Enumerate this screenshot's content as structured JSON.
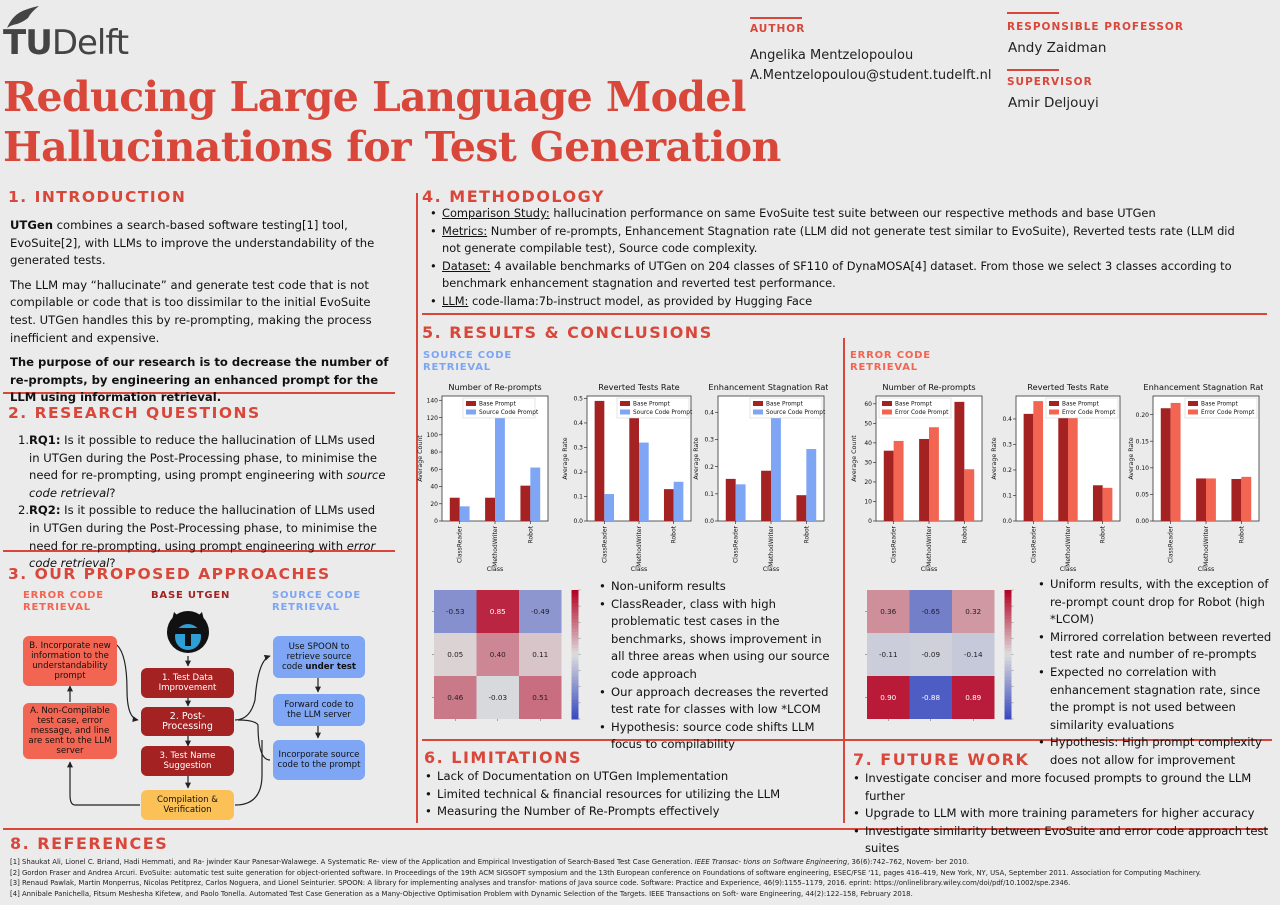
{
  "logo": {
    "text_tu": "TU",
    "text_delft": "Delft"
  },
  "title": [
    "Reducing Large Language Model",
    "Hallucinations for Test Generation"
  ],
  "author": {
    "label": "AUTHOR",
    "name": "Angelika Mentzelopoulou",
    "email": "A.Mentzelopoulou@student.tudelft.nl"
  },
  "professor": {
    "label": "RESPONSIBLE PROFESSOR",
    "name": "Andy Zaidman"
  },
  "supervisor": {
    "label": "SUPERVISOR",
    "name": "Amir Deljouyi"
  },
  "intro": {
    "heading": "1. INTRODUCTION",
    "p1_bold": "UTGen",
    "p1_rest": " combines a search-based software testing[1] tool, EvoSuite[2], with LLMs to improve the understandability of the generated tests.",
    "p2": "The LLM may “hallucinate” and generate test code that is not compilable or code that is too dissimilar to the initial EvoSuite test. UTGen handles this by re-prompting, making the process inefficient and expensive.",
    "p3": "The purpose of our research is to decrease the number of re-prompts, by engineering an enhanced prompt for the LLM using information retrieval."
  },
  "rq": {
    "heading": "2. RESEARCH QUESTIONS",
    "items": [
      {
        "num": "1.",
        "label": "RQ1:",
        "text": " Is it possible to reduce the hallucination of LLMs used in UTGen during the Post-Processing phase, to minimise the need for re-prompting, using prompt engineering with ",
        "em": "source code retrieval",
        "end": "?"
      },
      {
        "num": "2.",
        "label": "RQ2:",
        "text": " Is it possible to reduce the hallucination of LLMs used in UTGen during the Post-Processing phase, to minimise the need for re-prompting, using prompt engineering with ",
        "em": "error code retrieval",
        "end": "?"
      }
    ]
  },
  "approaches": {
    "heading": "3. OUR PROPOSED APPROACHES",
    "col_error": [
      "ERROR CODE",
      "RETRIEVAL"
    ],
    "col_base": "BASE UTGEN",
    "col_source": [
      "SOURCE CODE",
      "RETRIEVAL"
    ],
    "err1": "B. Incorporate new information to the understandability prompt",
    "err2": "A. Non-Compilable test case, error message, and line are sent to the LLM server",
    "base1": "1. Test Data Improvement",
    "base2": "2. Post-Processing",
    "base3": "3. Test Name Suggestion",
    "base4": "Compilation & Verification",
    "src1_a": "Use SPOON to retrieve source code ",
    "src1_b": "under test",
    "src2": "Forward code to the LLM server",
    "src3": "Incorporate source code to the prompt"
  },
  "methodology": {
    "heading": "4. METHODOLOGY",
    "items": [
      {
        "label": "Comparison Study:",
        "text": " hallucination performance on same EvoSuite test suite between our respective methods and base UTGen"
      },
      {
        "label": "Metrics:",
        "text": " Number of re-prompts, Enhancement Stagnation rate (LLM did not generate test similar to EvoSuite), Reverted tests rate (LLM did not generate compilable test), Source code complexity."
      },
      {
        "label": "Dataset:",
        "text": " 4 available benchmarks of UTGen on 204 classes of SF110 of DynaMOSA[4] dataset. From those we select 3 classes according to benchmark enhancement stagnation and reverted test performance."
      },
      {
        "label": "LLM:",
        "text": " code-llama:7b-instruct model, as provided by Hugging Face"
      }
    ]
  },
  "results": {
    "heading": "5. RESULTS & CONCLUSIONS",
    "source_label": [
      "SOURCE CODE",
      "RETRIEVAL"
    ],
    "error_label": [
      "ERROR CODE",
      "RETRIEVAL"
    ],
    "source_bullets": [
      "Non-uniform results",
      "ClassReader, class with high problematic test cases in the benchmarks, shows improvement in all three areas when using our source code approach",
      "Our approach decreases the reverted test rate for classes with low *LCOM",
      "Hypothesis: source code shifts LLM focus to compilability"
    ],
    "error_bullets": [
      "Uniform results, with the exception of re-prompt count drop for Robot (high *LCOM)",
      "Mirrored correlation between reverted test rate and number of re-prompts",
      "Expected no correlation with enhancement stagnation rate, since the prompt is not used between similarity evaluations",
      "Hypothesis: High prompt complexity does not allow for improvement"
    ]
  },
  "chart_data": [
    {
      "type": "bar",
      "title": "Number of Re-prompts",
      "categories": [
        "ClassReader",
        "MethodWriter",
        "Robot"
      ],
      "xlabel": "Class",
      "ylabel": "Average Count",
      "ylim": [
        0,
        145
      ],
      "yticks": [
        0,
        20,
        40,
        60,
        80,
        100,
        120,
        140
      ],
      "legend": "top-center",
      "grid": false,
      "series": [
        {
          "name": "Base Prompt",
          "color": "#a52222",
          "values": [
            27,
            27,
            41
          ]
        },
        {
          "name": "Source Code Prompt",
          "color": "#7fa6f4",
          "values": [
            17,
            120,
            62
          ]
        }
      ]
    },
    {
      "type": "bar",
      "title": "Reverted Tests Rate",
      "categories": [
        "ClassReader",
        "MethodWriter",
        "Robot"
      ],
      "xlabel": "Class",
      "ylabel": "Average Rate",
      "ylim": [
        0,
        0.51
      ],
      "yticks": [
        0.0,
        0.1,
        0.2,
        0.3,
        0.4,
        0.5
      ],
      "legend": "top-right",
      "grid": false,
      "series": [
        {
          "name": "Base Prompt",
          "color": "#a52222",
          "values": [
            0.49,
            0.42,
            0.13
          ]
        },
        {
          "name": "Source Code Prompt",
          "color": "#7fa6f4",
          "values": [
            0.11,
            0.32,
            0.16
          ]
        }
      ]
    },
    {
      "type": "bar",
      "title": "Enhancement Stagnation Rate",
      "categories": [
        "ClassReader",
        "MethodWriter",
        "Robot"
      ],
      "xlabel": "Class",
      "ylabel": "Average Rate",
      "ylim": [
        0,
        0.46
      ],
      "yticks": [
        0.0,
        0.1,
        0.2,
        0.3,
        0.4
      ],
      "legend": "top-right",
      "grid": false,
      "series": [
        {
          "name": "Base Prompt",
          "color": "#a52222",
          "values": [
            0.155,
            0.185,
            0.095
          ]
        },
        {
          "name": "Source Code Prompt",
          "color": "#7fa6f4",
          "values": [
            0.135,
            0.4,
            0.265
          ]
        }
      ]
    },
    {
      "type": "bar",
      "title": "Number of Re-prompts",
      "categories": [
        "ClassReader",
        "MethodWriter",
        "Robot"
      ],
      "xlabel": "Class",
      "ylabel": "Average Count",
      "ylim": [
        0,
        64
      ],
      "yticks": [
        0,
        10,
        20,
        30,
        40,
        50,
        60
      ],
      "legend": "top-left",
      "grid": false,
      "series": [
        {
          "name": "Base Prompt",
          "color": "#a52222",
          "values": [
            36,
            42,
            61
          ]
        },
        {
          "name": "Error Code Prompt",
          "color": "#f26552",
          "values": [
            41,
            48,
            26.5
          ]
        }
      ]
    },
    {
      "type": "bar",
      "title": "Reverted Tests Rate",
      "categories": [
        "ClassReader",
        "MethodWriter",
        "Robot"
      ],
      "xlabel": "Class",
      "ylabel": "Average Rate",
      "ylim": [
        0,
        0.49
      ],
      "yticks": [
        0.0,
        0.1,
        0.2,
        0.3,
        0.4
      ],
      "legend": "top-right",
      "grid": false,
      "series": [
        {
          "name": "Base Prompt",
          "color": "#a52222",
          "values": [
            0.42,
            0.41,
            0.14
          ]
        },
        {
          "name": "Error Code Prompt",
          "color": "#f26552",
          "values": [
            0.47,
            0.41,
            0.13
          ]
        }
      ]
    },
    {
      "type": "bar",
      "title": "Enhancement Stagnation Rate",
      "categories": [
        "ClassReader",
        "MethodWriter",
        "Robot"
      ],
      "xlabel": "Class",
      "ylabel": "Average Rate",
      "ylim": [
        0,
        0.235
      ],
      "yticks": [
        0.0,
        0.05,
        0.1,
        0.15,
        0.2
      ],
      "legend": "top-right",
      "grid": false,
      "series": [
        {
          "name": "Base Prompt",
          "color": "#a52222",
          "values": [
            0.212,
            0.08,
            0.079
          ]
        },
        {
          "name": "Error Code Prompt",
          "color": "#f26552",
          "values": [
            0.222,
            0.08,
            0.083
          ]
        }
      ]
    },
    {
      "type": "heatmap",
      "cells": [
        [
          -0.53,
          0.85,
          -0.49
        ],
        [
          0.05,
          0.4,
          0.11
        ],
        [
          0.46,
          -0.03,
          0.51
        ]
      ],
      "vmin": -1,
      "vmax": 1,
      "cmap": "coolwarm"
    },
    {
      "type": "heatmap",
      "cells": [
        [
          0.36,
          -0.65,
          0.32
        ],
        [
          -0.11,
          -0.09,
          -0.14
        ],
        [
          0.9,
          -0.88,
          0.89
        ]
      ],
      "vmin": -1,
      "vmax": 1,
      "cmap": "coolwarm"
    }
  ],
  "limitations": {
    "heading": "6. LIMITATIONS",
    "items": [
      "Lack of Documentation on UTGen Implementation",
      "Limited technical & financial resources for utilizing the LLM",
      "Measuring the Number of Re-Prompts effectively"
    ]
  },
  "future": {
    "heading": "7. FUTURE WORK",
    "items": [
      "Investigate conciser and more focused prompts to ground the LLM further",
      "Upgrade to LLM with more training parameters for higher accuracy",
      "Investigate similarity between EvoSuite  and error code approach test suites"
    ]
  },
  "references": {
    "heading": "8. REFERENCES",
    "items": [
      {
        "text": "[1] Shaukat Ali, Lionel C. Briand, Hadi Hemmati, and Ra- jwinder Kaur Panesar-Walawege. A Systematic Re- view of the Application and Empirical Investigation of Search-Based Test Case Generation. ",
        "em": "IEEE Transac- tions on Software Engineering",
        "end": ", 36(6):742–762, Novem- ber 2010."
      },
      {
        "text": "[2] Gordon Fraser and Andrea Arcuri. EvoSuite: automatic test suite generation for object-oriented software. In Proceedings of the 19th ACM SIGSOFT symposium and the 13th European conference on Foundations of software engineering, ESEC/FSE '11, pages 416–419, New York, NY, USA, September 2011. Association for Computing Machinery.",
        "em": "",
        "end": ""
      },
      {
        "text": "[3] Renaud Pawlak, Martin Monperrus, Nicolas Petitprez, Carlos Noguera, and Lionel Seinturier. SPOON: A library for implementing analyses and transfor- mations of Java source code. Software: Practice and Experience, 46(9):1155–1179, 2016. eprint: https://onlinelibrary.wiley.com/doi/pdf/10.1002/spe.2346.",
        "em": "",
        "end": ""
      },
      {
        "text": "[4] Annibale Panichella, Fitsum Meshesha Kifetew, and Paolo Tonella. Automated Test Case Generation as a Many-Objective Optimisation Problem with Dynamic Selection of the Targets. IEEE Transactions on Soft- ware Engineering, 44(2):122–158, February 2018.",
        "em": "",
        "end": ""
      }
    ]
  }
}
